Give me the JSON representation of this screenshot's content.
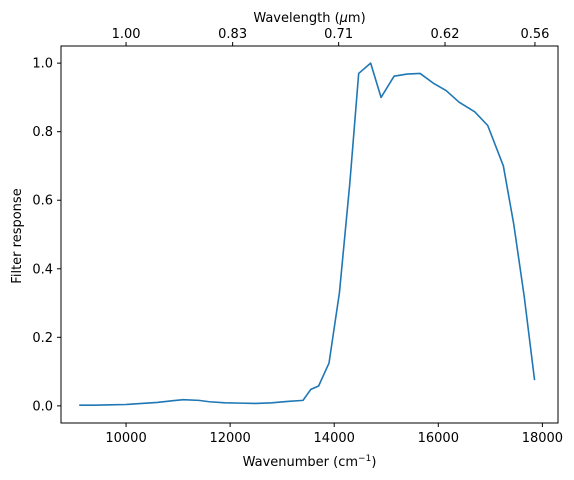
{
  "chart_data": {
    "type": "line",
    "title": "",
    "xlabel": "Wavenumber (cm",
    "xlabel_sup": "−1",
    "xlabel_end": ")",
    "ylabel": "Filter response",
    "top_xlabel": "Wavelength (",
    "top_xlabel_mu": "μ",
    "top_xlabel_end": "m)",
    "xlim": [
      8750,
      18300
    ],
    "ylim": [
      -0.05,
      1.05
    ],
    "x_ticks": [
      10000,
      12000,
      14000,
      16000,
      18000
    ],
    "x_tick_labels": [
      "10000",
      "12000",
      "14000",
      "16000",
      "18000"
    ],
    "y_ticks": [
      0.0,
      0.2,
      0.4,
      0.6,
      0.8,
      1.0
    ],
    "y_tick_labels": [
      "0.0",
      "0.2",
      "0.4",
      "0.6",
      "0.8",
      "1.0"
    ],
    "top_ticks": [
      10000,
      12048,
      14085,
      16129,
      17857
    ],
    "top_tick_labels": [
      "1.00",
      "0.83",
      "0.71",
      "0.62",
      "0.56"
    ],
    "grid": false,
    "line_color": "#1f77b4",
    "series": [
      {
        "x": [
          9100,
          9400,
          9700,
          10000,
          10300,
          10600,
          10900,
          11100,
          11400,
          11600,
          11900,
          12200,
          12500,
          12800,
          13100,
          13400,
          13550,
          13700,
          13900,
          14100,
          14300,
          14470,
          14700,
          14900,
          15150,
          15400,
          15650,
          15900,
          16150,
          16400,
          16700,
          16950,
          17250,
          17450,
          17650,
          17850
        ],
        "y": [
          0.002,
          0.002,
          0.003,
          0.004,
          0.007,
          0.01,
          0.015,
          0.018,
          0.016,
          0.012,
          0.009,
          0.008,
          0.007,
          0.009,
          0.013,
          0.016,
          0.048,
          0.058,
          0.125,
          0.33,
          0.65,
          0.97,
          1.0,
          0.9,
          0.962,
          0.968,
          0.97,
          0.942,
          0.92,
          0.886,
          0.858,
          0.818,
          0.7,
          0.53,
          0.32,
          0.075
        ]
      }
    ]
  }
}
